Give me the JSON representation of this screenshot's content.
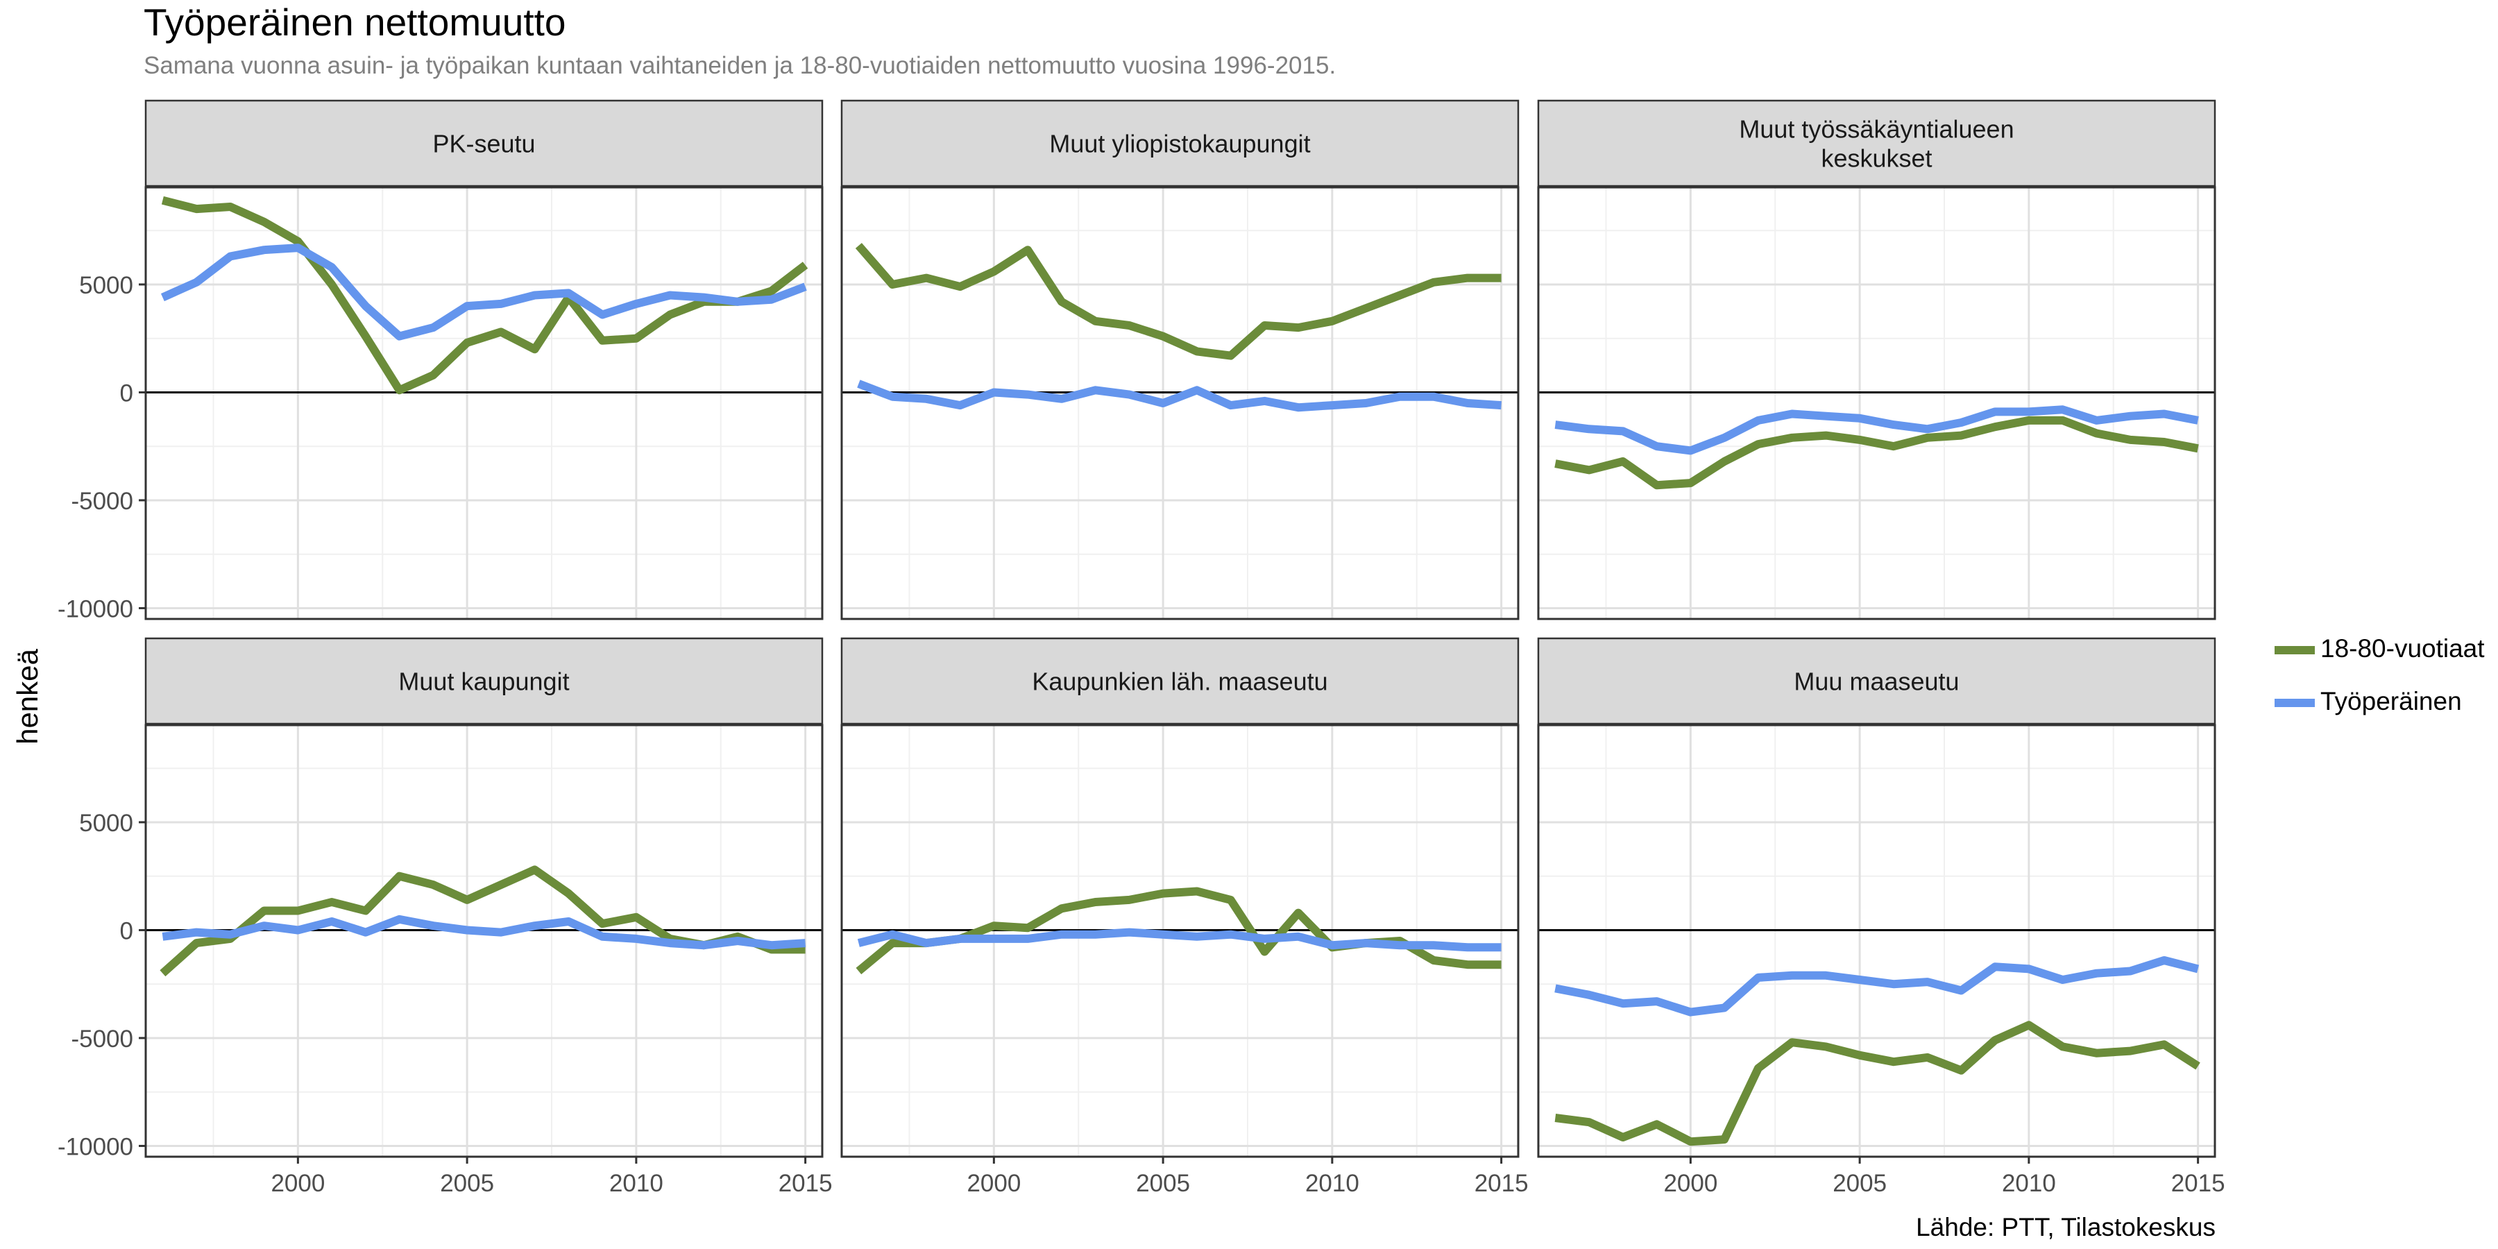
{
  "title": "Työperäinen nettomuutto",
  "subtitle": "Samana vuonna asuin- ja työpaikan kuntaan vaihtaneiden ja 18-80-vuotiaiden nettomuutto vuosina 1996-2015.",
  "caption": "Lähde: PTT, Tilastokeskus",
  "colors": {
    "18-80-vuotiaat": "#6b8c3a",
    "Työperäinen": "#6495ed"
  },
  "chart_data": {
    "type": "line",
    "ylabel": "henkeä",
    "xlim": [
      1995.5,
      2015.5
    ],
    "ylim": [
      -10500,
      9500
    ],
    "x_ticks": [
      2000,
      2005,
      2010,
      2015
    ],
    "y_ticks": [
      5000,
      0,
      -5000,
      -10000
    ],
    "y_tick_labels": [
      "5000",
      "0",
      "-5000",
      "-10000"
    ],
    "x": [
      1996,
      1997,
      1998,
      1999,
      2000,
      2001,
      2002,
      2003,
      2004,
      2005,
      2006,
      2007,
      2008,
      2009,
      2010,
      2011,
      2012,
      2013,
      2014,
      2015
    ],
    "legend": [
      {
        "name": "18-80-vuotiaat",
        "color": "#6b8c3a"
      },
      {
        "name": "Työperäinen",
        "color": "#6495ed"
      }
    ],
    "panels": [
      {
        "strip": [
          "PK-seutu"
        ],
        "series": [
          {
            "name": "18-80-vuotiaat",
            "values": [
              8900,
              8500,
              8600,
              7900,
              7000,
              5000,
              2600,
              100,
              800,
              2300,
              2800,
              2000,
              4400,
              2400,
              2500,
              3600,
              4200,
              4200,
              4700,
              5900
            ]
          },
          {
            "name": "Työperäinen",
            "values": [
              4400,
              5100,
              6300,
              6600,
              6700,
              5800,
              4000,
              2600,
              3000,
              4000,
              4100,
              4500,
              4600,
              3600,
              4100,
              4500,
              4400,
              4200,
              4300,
              4900
            ]
          }
        ]
      },
      {
        "strip": [
          "Muut yliopistokaupungit"
        ],
        "series": [
          {
            "name": "18-80-vuotiaat",
            "values": [
              6800,
              5000,
              5300,
              4900,
              5600,
              6600,
              4200,
              3300,
              3100,
              2600,
              1900,
              1700,
              3100,
              3000,
              3300,
              3900,
              4500,
              5100,
              5300,
              5300
            ]
          },
          {
            "name": "Työperäinen",
            "values": [
              400,
              -200,
              -300,
              -600,
              0,
              -100,
              -300,
              100,
              -100,
              -500,
              100,
              -600,
              -400,
              -700,
              -600,
              -500,
              -200,
              -200,
              -500,
              -600
            ]
          }
        ]
      },
      {
        "strip": [
          "Muut työssäkäyntialueen",
          "keskukset"
        ],
        "series": [
          {
            "name": "18-80-vuotiaat",
            "values": [
              -3300,
              -3600,
              -3200,
              -4300,
              -4200,
              -3200,
              -2400,
              -2100,
              -2000,
              -2200,
              -2500,
              -2100,
              -2000,
              -1600,
              -1300,
              -1300,
              -1900,
              -2200,
              -2300,
              -2600
            ]
          },
          {
            "name": "Työperäinen",
            "values": [
              -1500,
              -1700,
              -1800,
              -2500,
              -2700,
              -2100,
              -1300,
              -1000,
              -1100,
              -1200,
              -1500,
              -1700,
              -1400,
              -900,
              -900,
              -800,
              -1300,
              -1100,
              -1000,
              -1300
            ]
          }
        ]
      },
      {
        "strip": [
          "Muut kaupungit"
        ],
        "series": [
          {
            "name": "18-80-vuotiaat",
            "values": [
              -2000,
              -600,
              -400,
              900,
              900,
              1300,
              900,
              2500,
              2100,
              1400,
              2100,
              2800,
              1700,
              300,
              600,
              -400,
              -700,
              -300,
              -900,
              -900
            ]
          },
          {
            "name": "Työperäinen",
            "values": [
              -300,
              -100,
              -200,
              200,
              0,
              400,
              -100,
              500,
              200,
              0,
              -100,
              200,
              400,
              -300,
              -400,
              -600,
              -700,
              -500,
              -700,
              -600
            ]
          }
        ]
      },
      {
        "strip": [
          "Kaupunkien läh. maaseutu"
        ],
        "series": [
          {
            "name": "18-80-vuotiaat",
            "values": [
              -1900,
              -600,
              -600,
              -400,
              200,
              100,
              1000,
              1300,
              1400,
              1700,
              1800,
              1400,
              -1000,
              800,
              -800,
              -600,
              -500,
              -1400,
              -1600,
              -1600
            ]
          },
          {
            "name": "Työperäinen",
            "values": [
              -600,
              -200,
              -600,
              -400,
              -400,
              -400,
              -200,
              -200,
              -100,
              -200,
              -300,
              -200,
              -400,
              -300,
              -700,
              -600,
              -700,
              -700,
              -800,
              -800
            ]
          }
        ]
      },
      {
        "strip": [
          "Muu maaseutu"
        ],
        "series": [
          {
            "name": "18-80-vuotiaat",
            "values": [
              -8700,
              -8900,
              -9600,
              -9000,
              -9800,
              -9700,
              -6400,
              -5200,
              -5400,
              -5800,
              -6100,
              -5900,
              -6500,
              -5100,
              -4400,
              -5400,
              -5700,
              -5600,
              -5300,
              -6300
            ]
          },
          {
            "name": "Työperäinen",
            "values": [
              -2700,
              -3000,
              -3400,
              -3300,
              -3800,
              -3600,
              -2200,
              -2100,
              -2100,
              -2300,
              -2500,
              -2400,
              -2800,
              -1700,
              -1800,
              -2300,
              -2000,
              -1900,
              -1400,
              -1800
            ]
          }
        ]
      }
    ]
  }
}
